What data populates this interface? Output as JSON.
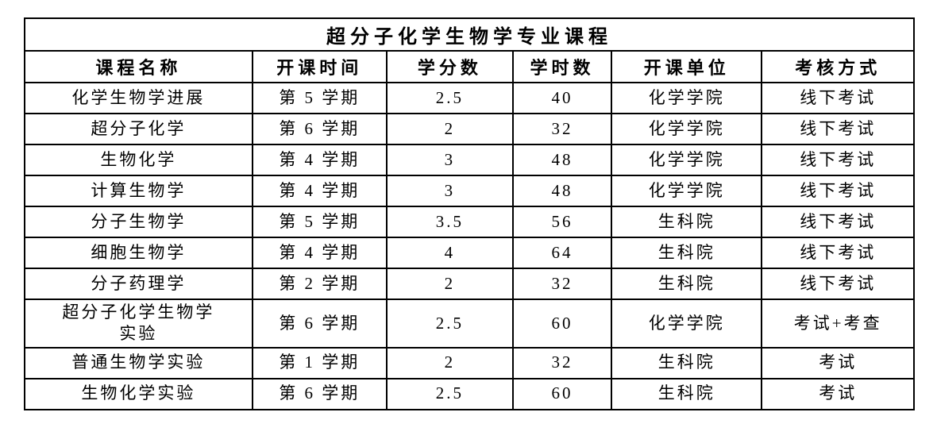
{
  "table": {
    "title": "超分子化学生物学专业课程",
    "columns": [
      "课程名称",
      "开课时间",
      "学分数",
      "学时数",
      "开课单位",
      "考核方式"
    ],
    "column_widths_pct": [
      25.6,
      15.1,
      14.2,
      11.1,
      16.9,
      17.1
    ],
    "rows": [
      [
        "化学生物学进展",
        "第 5 学期",
        "2.5",
        "40",
        "化学学院",
        "线下考试"
      ],
      [
        "超分子化学",
        "第 6 学期",
        "2",
        "32",
        "化学学院",
        "线下考试"
      ],
      [
        "生物化学",
        "第 4 学期",
        "3",
        "48",
        "化学学院",
        "线下考试"
      ],
      [
        "计算生物学",
        "第 4 学期",
        "3",
        "48",
        "化学学院",
        "线下考试"
      ],
      [
        "分子生物学",
        "第 5 学期",
        "3.5",
        "56",
        "生科院",
        "线下考试"
      ],
      [
        "细胞生物学",
        "第 4 学期",
        "4",
        "64",
        "生科院",
        "线下考试"
      ],
      [
        "分子药理学",
        "第 2 学期",
        "2",
        "32",
        "生科院",
        "线下考试"
      ],
      [
        "超分子化学生物学\n实验",
        "第 6 学期",
        "2.5",
        "60",
        "化学学院",
        "考试+考查"
      ],
      [
        "普通生物学实验",
        "第 1 学期",
        "2",
        "32",
        "生科院",
        "考试"
      ],
      [
        "生物化学实验",
        "第 6 学期",
        "2.5",
        "60",
        "生科院",
        "考试"
      ]
    ],
    "colors": {
      "border": "#000000",
      "text": "#000000",
      "background": "#ffffff"
    }
  }
}
